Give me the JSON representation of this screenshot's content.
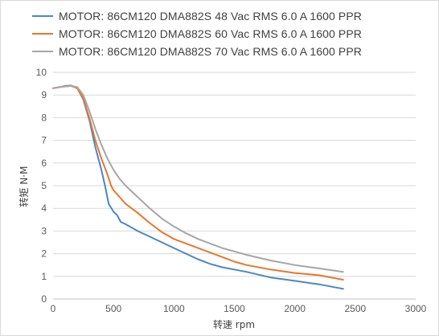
{
  "chart_data": {
    "type": "line",
    "title": "",
    "xlabel": "转速 rpm",
    "ylabel": "转矩 N·M",
    "xlim": [
      0,
      3000
    ],
    "ylim": [
      0,
      10
    ],
    "x_ticks": [
      0,
      500,
      1000,
      1500,
      2000,
      2500,
      3000
    ],
    "y_ticks": [
      0,
      1,
      2,
      3,
      4,
      5,
      6,
      7,
      8,
      9,
      10
    ],
    "grid": "horizontal",
    "legend_position": "top",
    "series": [
      {
        "name": "MOTOR: 86CM120  DMA882S 48 Vac  RMS  6.0 A  1600 PPR",
        "color": "#4a86c8",
        "points": [
          [
            0,
            9.3
          ],
          [
            60,
            9.35
          ],
          [
            100,
            9.4
          ],
          [
            150,
            9.42
          ],
          [
            200,
            9.3
          ],
          [
            250,
            8.8
          ],
          [
            300,
            7.9
          ],
          [
            350,
            6.7
          ],
          [
            400,
            5.7
          ],
          [
            430,
            5.0
          ],
          [
            460,
            4.2
          ],
          [
            500,
            3.85
          ],
          [
            530,
            3.7
          ],
          [
            560,
            3.4
          ],
          [
            600,
            3.3
          ],
          [
            700,
            3.0
          ],
          [
            800,
            2.75
          ],
          [
            900,
            2.5
          ],
          [
            1000,
            2.25
          ],
          [
            1100,
            2.0
          ],
          [
            1200,
            1.75
          ],
          [
            1300,
            1.55
          ],
          [
            1400,
            1.4
          ],
          [
            1500,
            1.3
          ],
          [
            1600,
            1.2
          ],
          [
            1800,
            0.95
          ],
          [
            2000,
            0.8
          ],
          [
            2200,
            0.65
          ],
          [
            2400,
            0.45
          ]
        ]
      },
      {
        "name": "MOTOR: 86CM120  DMA882S 60 Vac  RMS  6.0 A  1600 PPR",
        "color": "#e6772e",
        "points": [
          [
            0,
            9.3
          ],
          [
            60,
            9.35
          ],
          [
            100,
            9.38
          ],
          [
            150,
            9.4
          ],
          [
            200,
            9.3
          ],
          [
            250,
            8.85
          ],
          [
            300,
            8.0
          ],
          [
            350,
            7.0
          ],
          [
            400,
            6.2
          ],
          [
            450,
            5.5
          ],
          [
            480,
            5.0
          ],
          [
            500,
            4.8
          ],
          [
            550,
            4.5
          ],
          [
            600,
            4.2
          ],
          [
            700,
            3.8
          ],
          [
            800,
            3.35
          ],
          [
            900,
            2.95
          ],
          [
            1000,
            2.65
          ],
          [
            1100,
            2.45
          ],
          [
            1200,
            2.25
          ],
          [
            1300,
            2.05
          ],
          [
            1400,
            1.85
          ],
          [
            1500,
            1.65
          ],
          [
            1600,
            1.5
          ],
          [
            1800,
            1.3
          ],
          [
            2000,
            1.15
          ],
          [
            2200,
            1.05
          ],
          [
            2400,
            0.85
          ]
        ]
      },
      {
        "name": "MOTOR: 86CM120  DMA882S 70 Vac  RMS  6.0 A  1600 PPR",
        "color": "#a6a6a6",
        "points": [
          [
            0,
            9.3
          ],
          [
            60,
            9.35
          ],
          [
            100,
            9.38
          ],
          [
            150,
            9.4
          ],
          [
            200,
            9.35
          ],
          [
            250,
            9.0
          ],
          [
            300,
            8.3
          ],
          [
            350,
            7.5
          ],
          [
            400,
            6.8
          ],
          [
            450,
            6.2
          ],
          [
            500,
            5.7
          ],
          [
            550,
            5.3
          ],
          [
            600,
            5.0
          ],
          [
            700,
            4.5
          ],
          [
            800,
            4.0
          ],
          [
            900,
            3.55
          ],
          [
            1000,
            3.2
          ],
          [
            1100,
            2.9
          ],
          [
            1200,
            2.65
          ],
          [
            1300,
            2.45
          ],
          [
            1400,
            2.25
          ],
          [
            1500,
            2.1
          ],
          [
            1600,
            1.95
          ],
          [
            1800,
            1.7
          ],
          [
            2000,
            1.5
          ],
          [
            2200,
            1.35
          ],
          [
            2400,
            1.2
          ]
        ]
      }
    ]
  }
}
